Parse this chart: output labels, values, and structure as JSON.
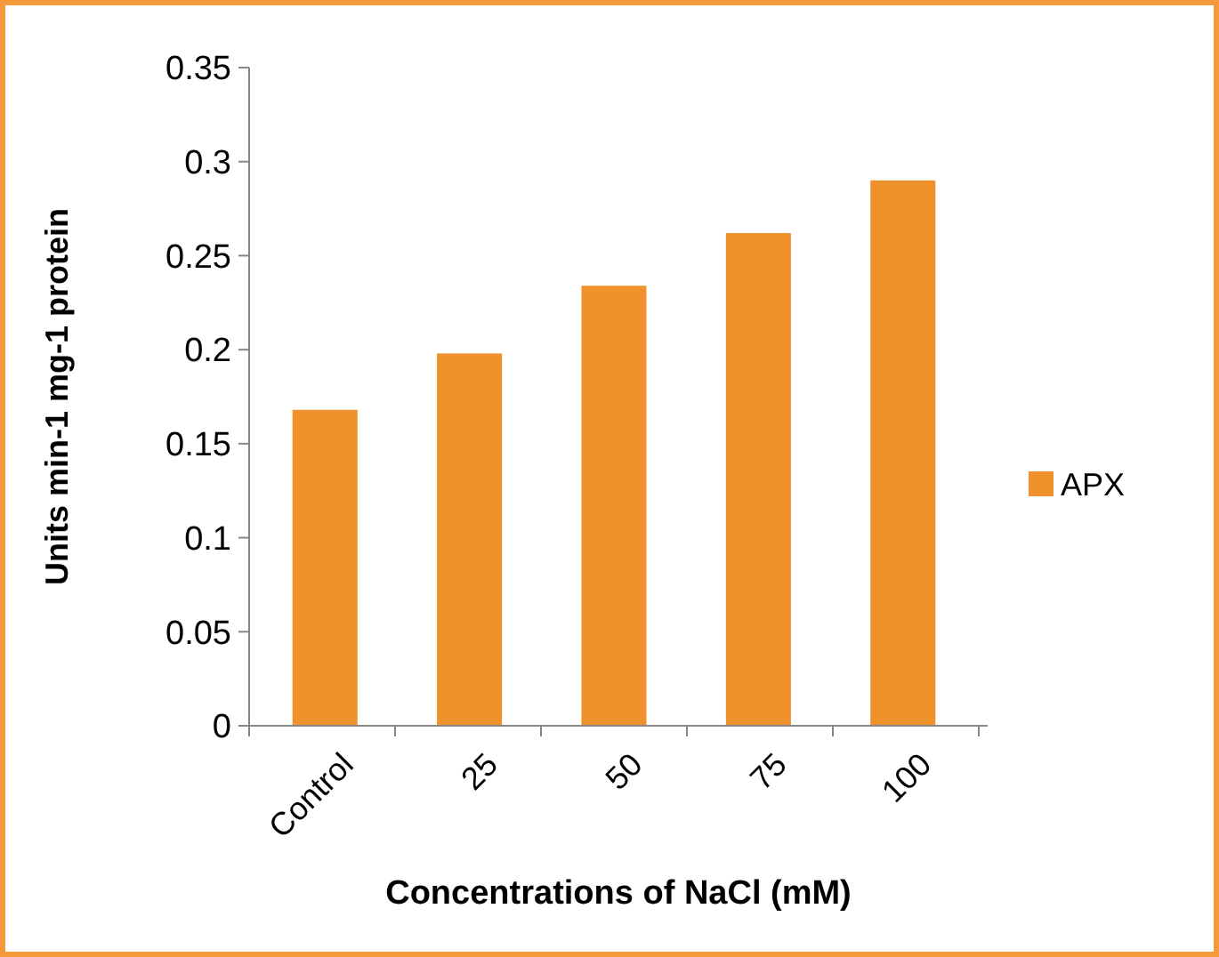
{
  "chart_data": {
    "type": "bar",
    "xlabel": "Concentrations of NaCl (mM)",
    "ylabel": "Units min-1 mg-1 protein",
    "categories": [
      "Control",
      "25",
      "50",
      "75",
      "100"
    ],
    "series": [
      {
        "name": "APX",
        "color": "#f0922b",
        "values": [
          0.168,
          0.198,
          0.234,
          0.262,
          0.29
        ]
      }
    ],
    "ylim": [
      0,
      0.35
    ],
    "yticks": [
      0,
      0.05,
      0.1,
      0.15,
      0.2,
      0.25,
      0.3,
      0.35
    ],
    "grid": false,
    "legend": "right"
  }
}
